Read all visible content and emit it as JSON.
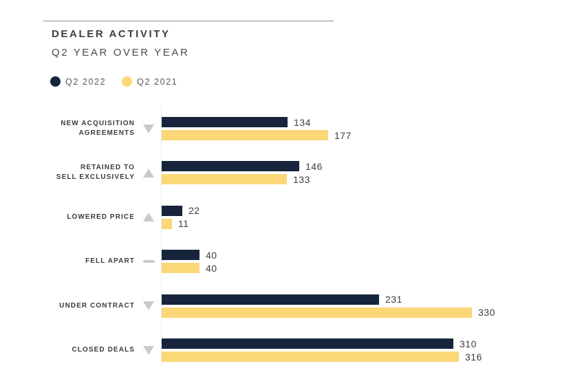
{
  "header": {
    "title": "DEALER ACTIVITY",
    "subtitle": "Q2 YEAR OVER YEAR"
  },
  "legend": {
    "items": [
      {
        "label": "Q2 2022"
      },
      {
        "label": "Q2 2021"
      }
    ]
  },
  "colors": {
    "navy": "#16243c",
    "yellow": "#fbd778",
    "indicator_gray": "#c8cacc",
    "axis_line": "#eaeaea",
    "divider": "#8a8a8a"
  },
  "chart_data": {
    "type": "bar",
    "orientation": "horizontal",
    "title": "DEALER ACTIVITY",
    "subtitle": "Q2 YEAR OVER YEAR",
    "categories": [
      "NEW ACQUISITION AGREEMENTS",
      "RETAINED TO SELL EXCLUSIVELY",
      "LOWERED PRICE",
      "FELL APART",
      "UNDER CONTRACT",
      "CLOSED DEALS"
    ],
    "category_lines": [
      [
        "NEW ACQUISITION",
        "AGREEMENTS"
      ],
      [
        "RETAINED TO",
        "SELL EXCLUSIVELY"
      ],
      [
        "LOWERED PRICE"
      ],
      [
        "FELL APART"
      ],
      [
        "UNDER CONTRACT"
      ],
      [
        "CLOSED DEALS"
      ]
    ],
    "series": [
      {
        "name": "Q2 2022",
        "color": "#16243c",
        "values": [
          134,
          146,
          22,
          40,
          231,
          310
        ]
      },
      {
        "name": "Q2 2021",
        "color": "#fbd778",
        "values": [
          177,
          133,
          11,
          40,
          330,
          316
        ]
      }
    ],
    "indicators": [
      "down",
      "up",
      "up",
      "flat",
      "down",
      "down"
    ],
    "xlim": [
      0,
      330
    ],
    "grid": false,
    "legend_position": "top-left",
    "value_labels": true
  }
}
